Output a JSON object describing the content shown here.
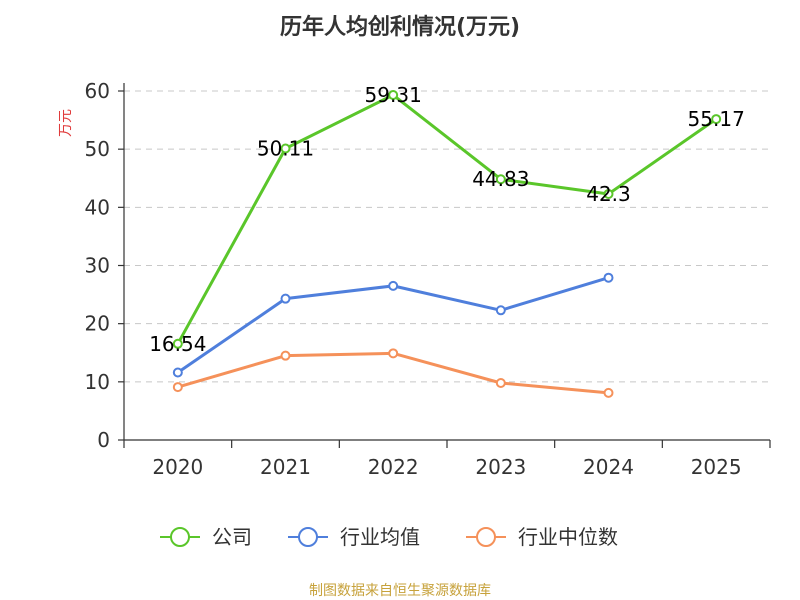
{
  "chart_data": {
    "type": "line",
    "title": "历年人均创利情况(万元)",
    "ylabel": "万元",
    "xlabel": "",
    "categories": [
      "2020",
      "2021",
      "2022",
      "2023",
      "2024",
      "2025"
    ],
    "ylim": [
      0,
      60
    ],
    "yticks": [
      0,
      10,
      20,
      30,
      40,
      50,
      60
    ],
    "grid": true,
    "legend_position": "bottom",
    "series": [
      {
        "name": "公司",
        "color": "#5ac62a",
        "values": [
          16.54,
          50.11,
          59.31,
          44.83,
          42.3,
          55.17
        ],
        "labels": [
          "16.54",
          "50.11",
          "59.31",
          "44.83",
          "42.3",
          "55.17"
        ]
      },
      {
        "name": "行业均值",
        "color": "#4f7fdc",
        "values": [
          11.6,
          24.3,
          26.5,
          22.3,
          27.9,
          null
        ]
      },
      {
        "name": "行业中位数",
        "color": "#f5915a",
        "values": [
          9.1,
          14.5,
          14.9,
          9.8,
          8.1,
          null
        ]
      }
    ]
  },
  "footer": {
    "source": "制图数据来自恒生聚源数据库"
  }
}
